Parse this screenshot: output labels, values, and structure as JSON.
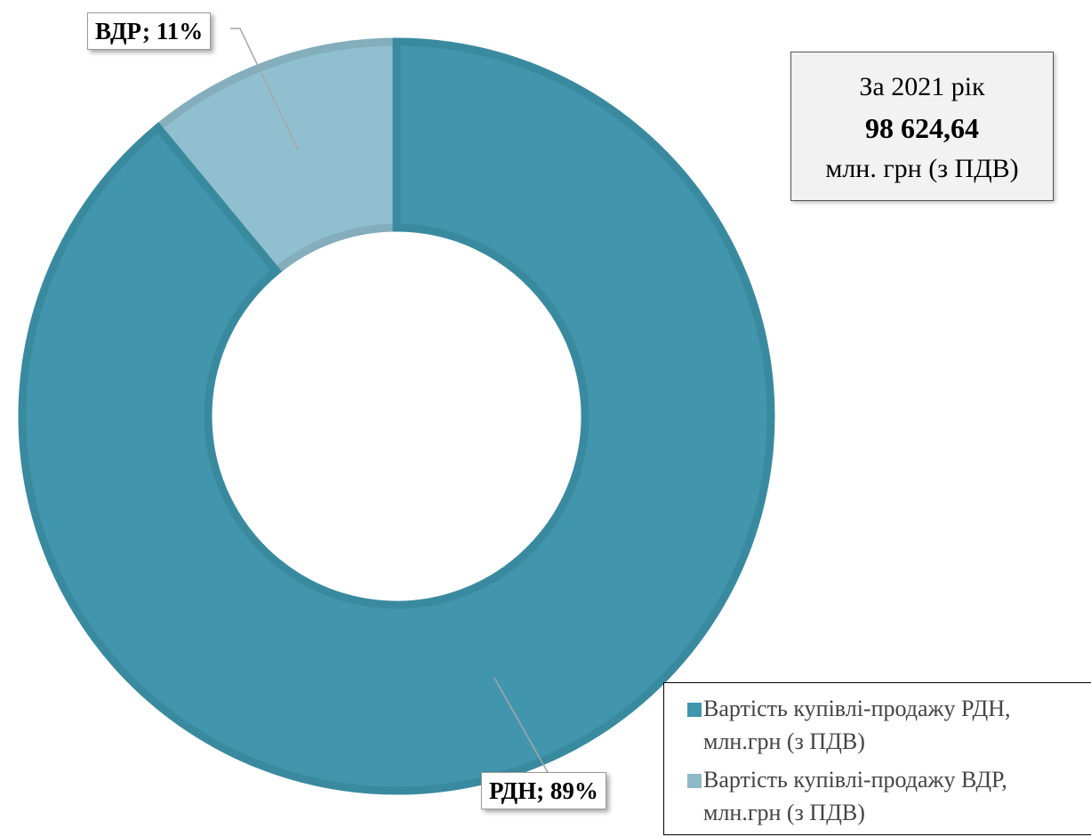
{
  "chart_data": {
    "type": "pie",
    "donut": true,
    "slices": [
      {
        "label": "РДН",
        "percent": 89,
        "color": "#4196ad",
        "stroke": "#3a8a9f"
      },
      {
        "label": "ВДР",
        "percent": 11,
        "color": "#90bfcf",
        "stroke": "#84aebc"
      }
    ],
    "data_labels": [
      "РДН; 89%",
      "ВДР; 11%"
    ],
    "legend": [
      {
        "line1": "Вартість купівлі-продажу РДН,",
        "line2": "млн.грн (з ПДВ)",
        "color": "#4196ad"
      },
      {
        "line1": "Вартість купівлі-продажу ВДР,",
        "line2": "млн.грн (з ПДВ)",
        "color": "#8db8c8"
      }
    ],
    "legend_position": "bottom-right"
  },
  "summary": {
    "line1": "За 2021 рік",
    "value": "98 624,64",
    "line3": "млн. грн (з ПДВ)"
  }
}
